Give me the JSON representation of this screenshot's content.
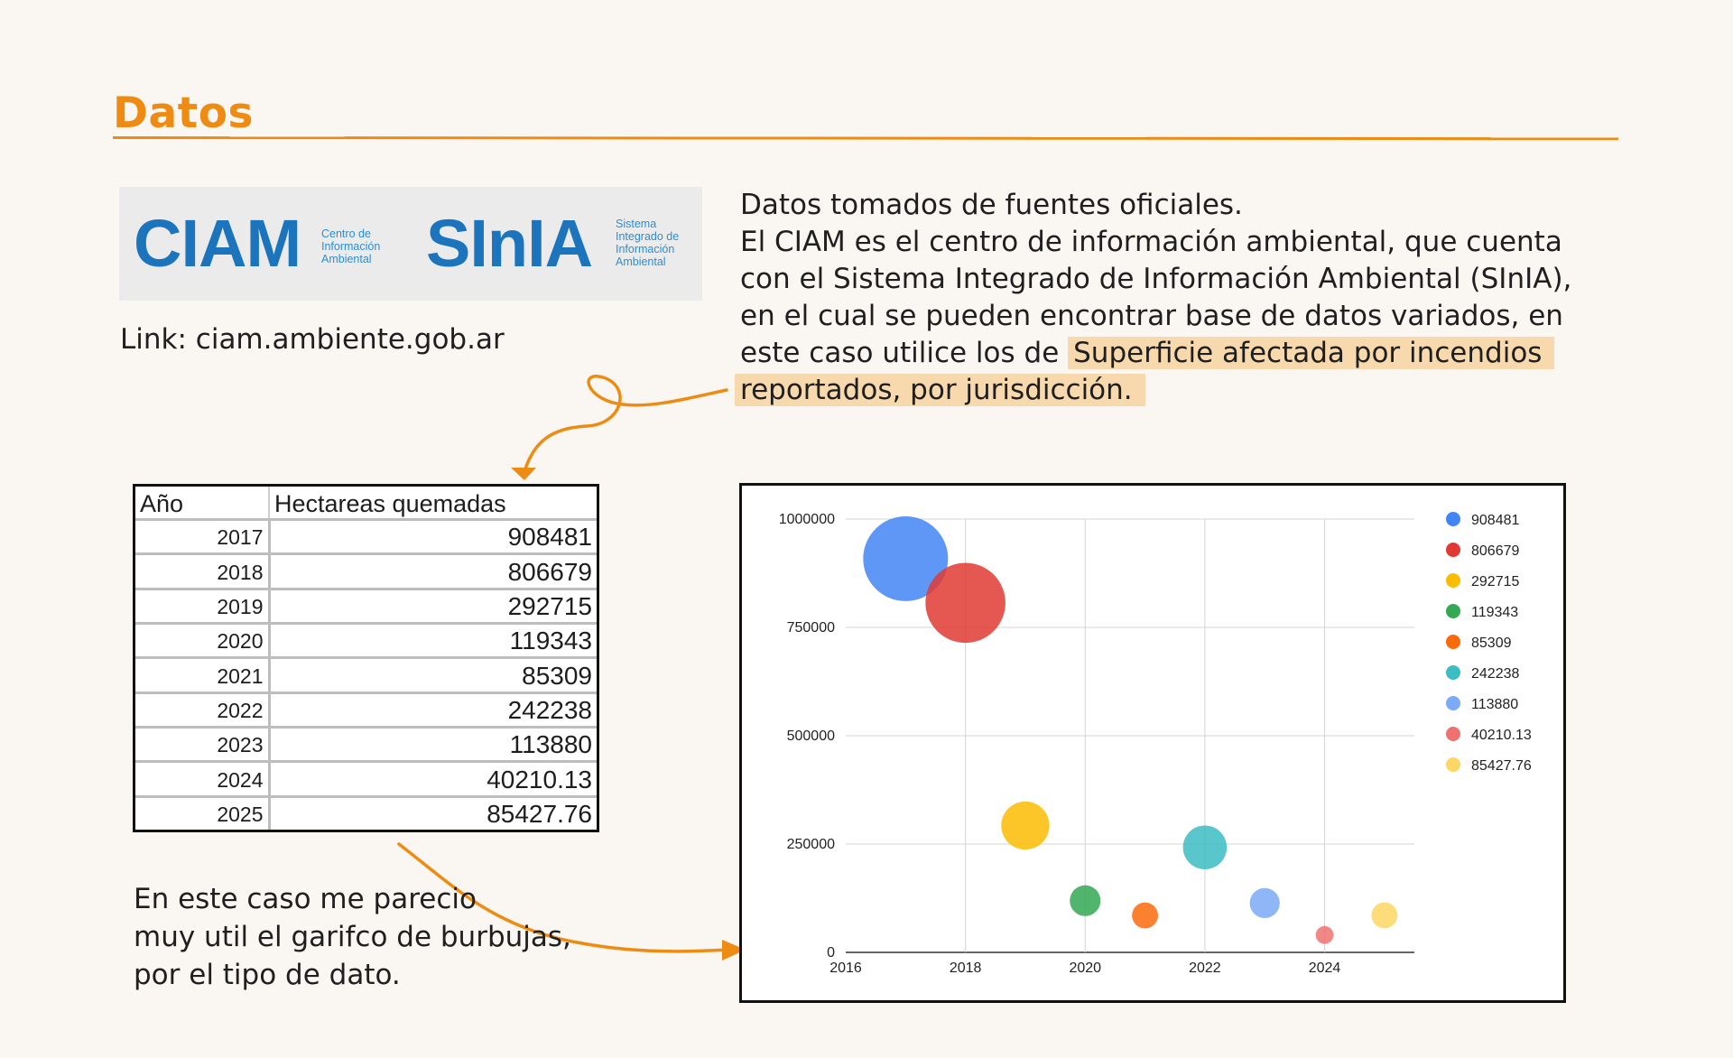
{
  "page": {
    "title": "Datos",
    "link_text": "Link: ciam.ambiente.gob.ar",
    "description_lines": [
      "Datos tomados de fuentes oficiales.",
      "El CIAM es el centro de información ambiental, que cuenta",
      "con el Sistema Integrado de Información Ambiental (SInIA),",
      "en el cual se pueden encontrar base de datos variados, en"
    ],
    "description_last_plain": "este caso utilice los de ",
    "description_highlight_1": "Superficie afectada por incendios",
    "description_highlight_2": "reportados, por jurisdicción.",
    "note_lines": [
      "En este caso me parecio",
      "muy util el garifco de burbujas,",
      "por el tipo de dato."
    ],
    "colors": {
      "accent": "#ee8b12",
      "highlight": "#f8d9ad",
      "logo_blue": "#1c75bc"
    }
  },
  "logos": {
    "ciam": {
      "name": "CIAM",
      "sub": [
        "Centro de",
        "Información",
        "Ambiental"
      ]
    },
    "sinia": {
      "name": "SInIA",
      "sub": [
        "Sistema",
        "Integrado de",
        "Información",
        "Ambiental"
      ]
    }
  },
  "table": {
    "headers": [
      "Año",
      "Hectareas quemadas"
    ],
    "rows": [
      [
        "2017",
        "908481"
      ],
      [
        "2018",
        "806679"
      ],
      [
        "2019",
        "292715"
      ],
      [
        "2020",
        "119343"
      ],
      [
        "2021",
        "85309"
      ],
      [
        "2022",
        "242238"
      ],
      [
        "2023",
        "113880"
      ],
      [
        "2024",
        "40210.13"
      ],
      [
        "2025",
        "85427.76"
      ]
    ]
  },
  "chart_data": {
    "type": "scatter",
    "subtype": "bubble",
    "title": "",
    "xlabel": "",
    "ylabel": "",
    "xlim": [
      2016,
      2025.5
    ],
    "ylim": [
      0,
      1000000
    ],
    "x_ticks": [
      "2016",
      "2018",
      "2020",
      "2022",
      "2024"
    ],
    "y_ticks": [
      "0",
      "250000",
      "500000",
      "750000",
      "1000000"
    ],
    "grid": true,
    "legend_position": "right",
    "series": [
      {
        "name": "908481",
        "x": 2017,
        "y": 908481,
        "color": "#4285f4"
      },
      {
        "name": "806679",
        "x": 2018,
        "y": 806679,
        "color": "#e03a32"
      },
      {
        "name": "292715",
        "x": 2019,
        "y": 292715,
        "color": "#fbbc04"
      },
      {
        "name": "119343",
        "x": 2020,
        "y": 119343,
        "color": "#34a853"
      },
      {
        "name": "85309",
        "x": 2021,
        "y": 85309,
        "color": "#fa6a0a"
      },
      {
        "name": "242238",
        "x": 2022,
        "y": 242238,
        "color": "#3cbcc3"
      },
      {
        "name": "113880",
        "x": 2023,
        "y": 113880,
        "color": "#7baaf7"
      },
      {
        "name": "40210.13",
        "x": 2024,
        "y": 40210.13,
        "color": "#ee7370"
      },
      {
        "name": "85427.76",
        "x": 2025,
        "y": 85427.76,
        "color": "#fdd663"
      }
    ]
  }
}
